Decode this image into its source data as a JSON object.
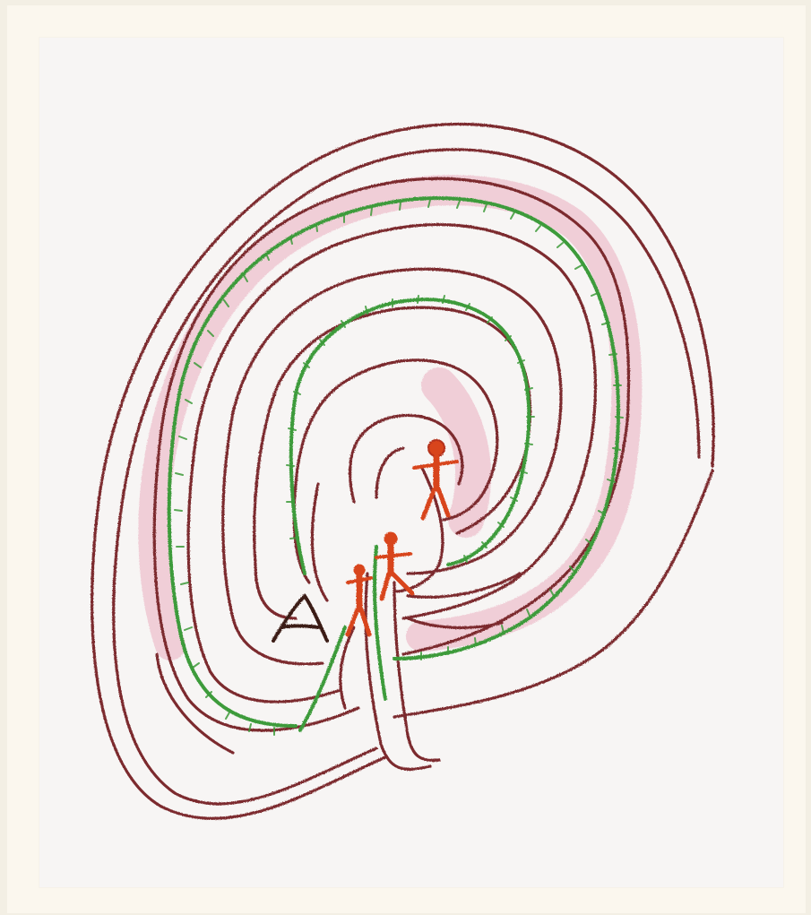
{
  "colors": {
    "background": "#fbf7ee",
    "paper": "#f7f5f4",
    "maze_line": "#7b2b2e",
    "maze_line_light": "#8d3a3f",
    "pink_fill": "#e7a7b8",
    "green_thread": "#3e9b3a",
    "figures": "#d8451c",
    "dark_mark": "#3b1a12"
  },
  "drawing": {
    "subject": "crayon-labyrinth",
    "figure_count": 3,
    "has_green_thread": true
  }
}
